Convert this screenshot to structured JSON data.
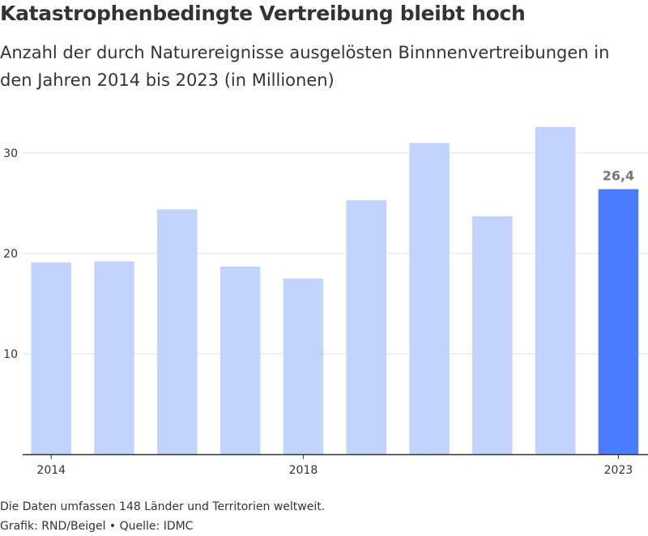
{
  "header": {
    "title": "Katastrophenbedingte Vertreibung bleibt hoch",
    "subtitle": "Anzahl der durch Naturereignisse ausgelösten Binnnenvertreibungen in den Jahren 2014 bis 2023 (in Millionen)"
  },
  "footer": {
    "note": "Die Daten umfassen 148 Länder und Territorien weltweit.",
    "source": "Grafik: RND/Beigel • Quelle: IDMC"
  },
  "colors": {
    "bar": "#c2d4fd",
    "highlight": "#4b7cff",
    "grid": "#e2e2e2",
    "axis": "#333333",
    "label": "#777777"
  },
  "chart_data": {
    "type": "bar",
    "categories": [
      "2014",
      "2015",
      "2016",
      "2017",
      "2018",
      "2019",
      "2020",
      "2021",
      "2022",
      "2023"
    ],
    "values": [
      19.1,
      19.2,
      24.4,
      18.7,
      17.5,
      25.3,
      31.0,
      23.7,
      32.6,
      26.4
    ],
    "x_tick_labels": [
      "2014",
      "2018",
      "2023"
    ],
    "yticks": [
      10,
      20,
      30
    ],
    "ylim": [
      0,
      35
    ],
    "grid": true,
    "highlight_index": 9,
    "data_labels": [
      {
        "index": 9,
        "text": "26,4"
      }
    ]
  }
}
